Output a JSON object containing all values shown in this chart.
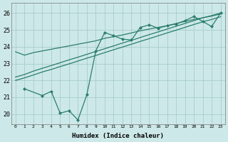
{
  "xlabel": "Humidex (Indice chaleur)",
  "background_color": "#cde8e8",
  "grid_color": "#a0c8c8",
  "line_color": "#2a7d6e",
  "xlim": [
    -0.5,
    23.5
  ],
  "ylim": [
    19.4,
    26.6
  ],
  "yticks": [
    20,
    21,
    22,
    23,
    24,
    25,
    26
  ],
  "xticks": [
    0,
    1,
    2,
    3,
    4,
    5,
    6,
    7,
    8,
    9,
    10,
    11,
    12,
    13,
    14,
    15,
    16,
    17,
    18,
    19,
    20,
    21,
    22,
    23
  ],
  "line1_x": [
    0,
    1,
    2,
    3,
    4,
    5,
    6,
    7,
    8,
    9,
    10,
    11,
    12,
    13,
    14,
    15,
    16,
    17,
    18,
    19,
    20,
    21,
    22,
    23
  ],
  "line1_y": [
    23.7,
    23.5,
    23.65,
    23.75,
    23.85,
    23.95,
    24.05,
    24.15,
    24.25,
    24.35,
    24.5,
    24.6,
    24.7,
    24.82,
    24.95,
    25.05,
    25.15,
    25.25,
    25.38,
    25.5,
    25.62,
    25.72,
    25.82,
    25.95
  ],
  "line2_x": [
    0,
    1,
    2,
    3,
    4,
    5,
    6,
    7,
    8,
    9,
    10,
    11,
    12,
    13,
    14,
    15,
    16,
    17,
    18,
    19,
    20,
    21,
    22,
    23
  ],
  "line2_y": [
    22.2,
    22.35,
    22.55,
    22.72,
    22.88,
    23.05,
    23.22,
    23.38,
    23.55,
    23.72,
    23.88,
    24.05,
    24.22,
    24.38,
    24.55,
    24.72,
    24.88,
    25.05,
    25.22,
    25.38,
    25.55,
    25.72,
    25.85,
    26.0
  ],
  "line3_x": [
    0,
    1,
    2,
    3,
    4,
    5,
    6,
    7,
    8,
    9,
    10,
    11,
    12,
    13,
    14,
    15,
    16,
    17,
    18,
    19,
    20,
    21,
    22,
    23
  ],
  "line3_y": [
    22.0,
    22.15,
    22.32,
    22.5,
    22.65,
    22.82,
    22.98,
    23.15,
    23.32,
    23.48,
    23.65,
    23.82,
    23.98,
    24.15,
    24.32,
    24.48,
    24.65,
    24.82,
    24.98,
    25.15,
    25.32,
    25.48,
    25.62,
    25.78
  ],
  "line4_x": [
    1,
    3,
    4,
    5,
    6,
    7,
    8,
    9,
    10,
    11,
    12,
    13,
    14,
    15,
    16,
    17,
    18,
    19,
    20,
    21,
    22,
    23
  ],
  "line4_y": [
    21.5,
    21.1,
    21.35,
    20.05,
    20.2,
    19.65,
    21.15,
    23.75,
    24.85,
    24.65,
    24.45,
    24.4,
    25.15,
    25.3,
    25.1,
    25.25,
    25.35,
    25.55,
    25.8,
    25.5,
    25.2,
    26.0
  ]
}
